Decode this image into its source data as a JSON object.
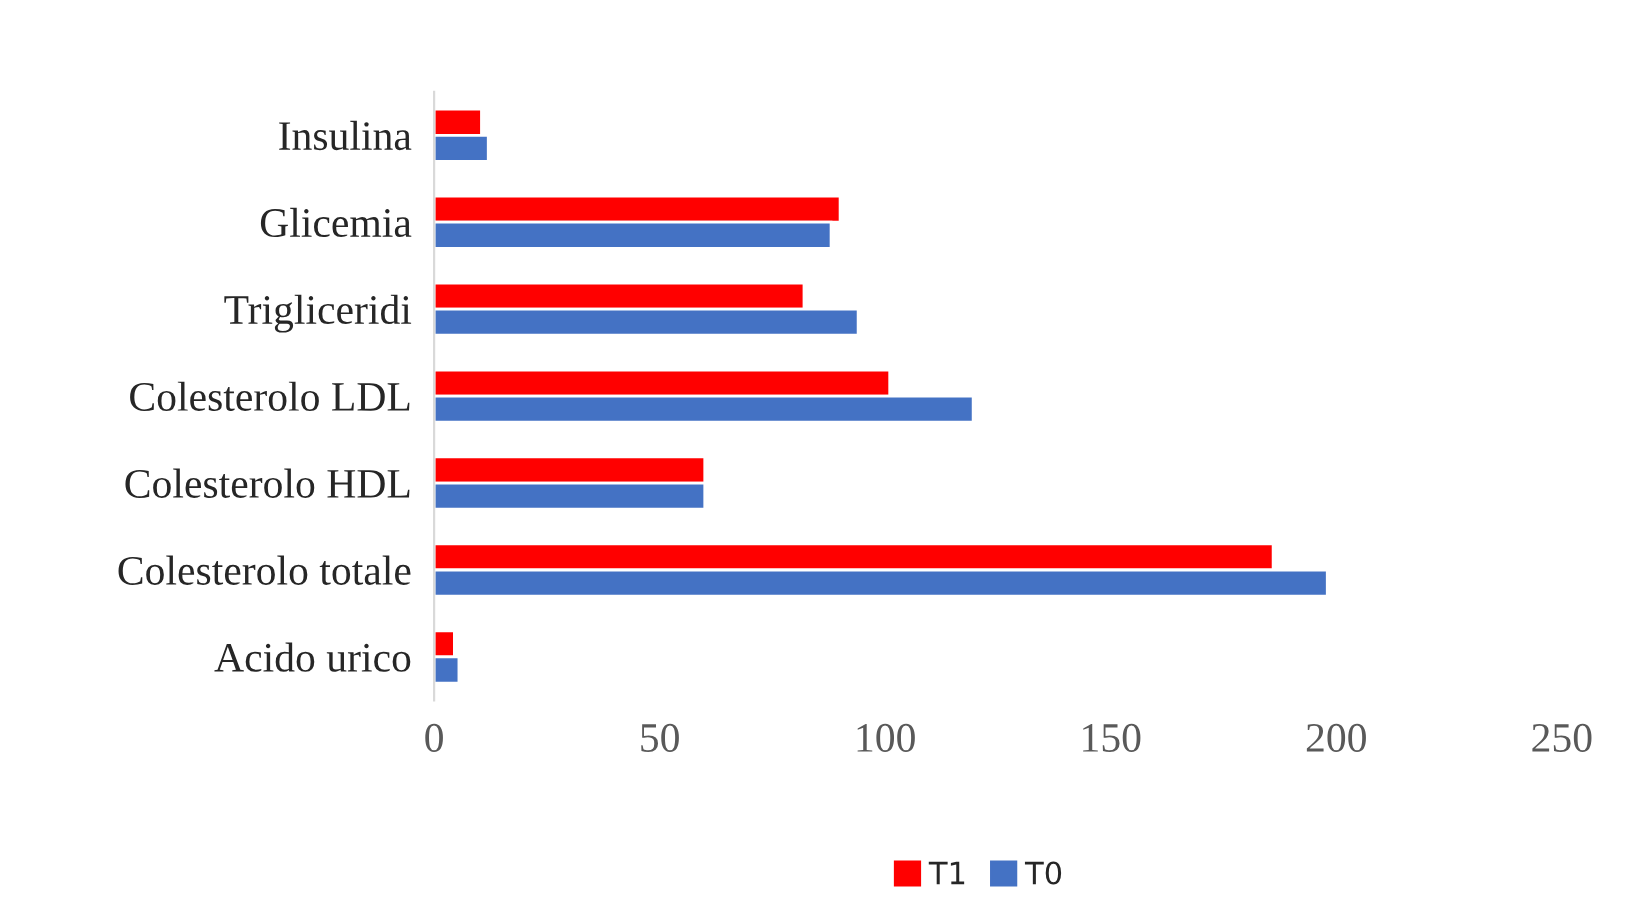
{
  "chart_data": {
    "type": "bar",
    "orientation": "horizontal",
    "categories": [
      "Insulina",
      "Glicemia",
      "Trigliceridi",
      "Colesterolo LDL",
      "Colesterolo HDL",
      "Colesterolo totale",
      "Acido urico"
    ],
    "series": [
      {
        "name": "T1",
        "color": "#ff0000",
        "values": [
          10.5,
          90,
          82,
          101,
          60,
          186,
          4.5
        ]
      },
      {
        "name": "T0",
        "color": "#4472c4",
        "values": [
          12,
          88,
          94,
          119.5,
          60,
          198,
          5.5
        ]
      }
    ],
    "xlim": [
      0,
      250
    ],
    "xticks": [
      0,
      50,
      100,
      150,
      200,
      250
    ],
    "grid": false,
    "legend": "bottom"
  }
}
